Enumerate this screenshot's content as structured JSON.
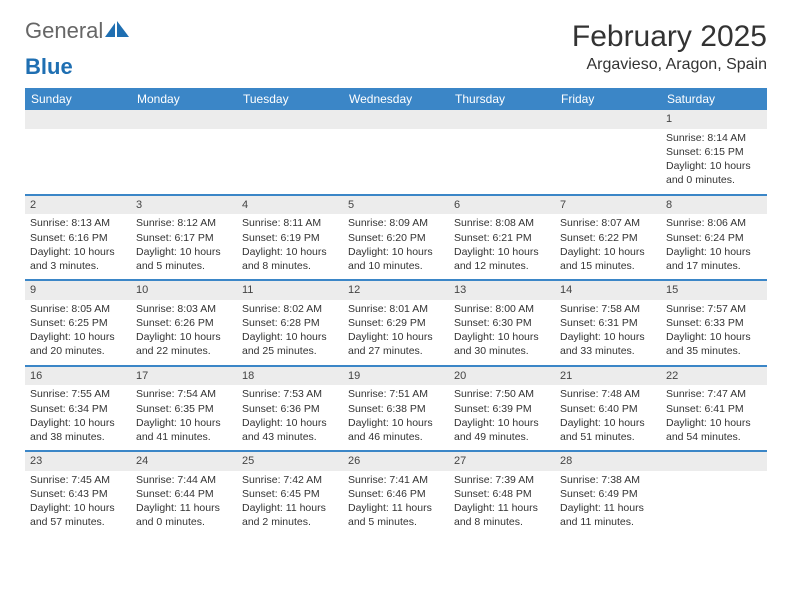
{
  "brand": {
    "part1": "General",
    "part2": "Blue"
  },
  "title": "February 2025",
  "location": "Argavieso, Aragon, Spain",
  "colors": {
    "header_bg": "#3b86c7",
    "header_text": "#ffffff",
    "rule": "#3b86c7",
    "daynum_bg": "#ececec",
    "body_text": "#333333"
  },
  "day_headers": [
    "Sunday",
    "Monday",
    "Tuesday",
    "Wednesday",
    "Thursday",
    "Friday",
    "Saturday"
  ],
  "weeks": [
    [
      null,
      null,
      null,
      null,
      null,
      null,
      {
        "n": "1",
        "sunrise": "Sunrise: 8:14 AM",
        "sunset": "Sunset: 6:15 PM",
        "daylight": "Daylight: 10 hours and 0 minutes."
      }
    ],
    [
      {
        "n": "2",
        "sunrise": "Sunrise: 8:13 AM",
        "sunset": "Sunset: 6:16 PM",
        "daylight": "Daylight: 10 hours and 3 minutes."
      },
      {
        "n": "3",
        "sunrise": "Sunrise: 8:12 AM",
        "sunset": "Sunset: 6:17 PM",
        "daylight": "Daylight: 10 hours and 5 minutes."
      },
      {
        "n": "4",
        "sunrise": "Sunrise: 8:11 AM",
        "sunset": "Sunset: 6:19 PM",
        "daylight": "Daylight: 10 hours and 8 minutes."
      },
      {
        "n": "5",
        "sunrise": "Sunrise: 8:09 AM",
        "sunset": "Sunset: 6:20 PM",
        "daylight": "Daylight: 10 hours and 10 minutes."
      },
      {
        "n": "6",
        "sunrise": "Sunrise: 8:08 AM",
        "sunset": "Sunset: 6:21 PM",
        "daylight": "Daylight: 10 hours and 12 minutes."
      },
      {
        "n": "7",
        "sunrise": "Sunrise: 8:07 AM",
        "sunset": "Sunset: 6:22 PM",
        "daylight": "Daylight: 10 hours and 15 minutes."
      },
      {
        "n": "8",
        "sunrise": "Sunrise: 8:06 AM",
        "sunset": "Sunset: 6:24 PM",
        "daylight": "Daylight: 10 hours and 17 minutes."
      }
    ],
    [
      {
        "n": "9",
        "sunrise": "Sunrise: 8:05 AM",
        "sunset": "Sunset: 6:25 PM",
        "daylight": "Daylight: 10 hours and 20 minutes."
      },
      {
        "n": "10",
        "sunrise": "Sunrise: 8:03 AM",
        "sunset": "Sunset: 6:26 PM",
        "daylight": "Daylight: 10 hours and 22 minutes."
      },
      {
        "n": "11",
        "sunrise": "Sunrise: 8:02 AM",
        "sunset": "Sunset: 6:28 PM",
        "daylight": "Daylight: 10 hours and 25 minutes."
      },
      {
        "n": "12",
        "sunrise": "Sunrise: 8:01 AM",
        "sunset": "Sunset: 6:29 PM",
        "daylight": "Daylight: 10 hours and 27 minutes."
      },
      {
        "n": "13",
        "sunrise": "Sunrise: 8:00 AM",
        "sunset": "Sunset: 6:30 PM",
        "daylight": "Daylight: 10 hours and 30 minutes."
      },
      {
        "n": "14",
        "sunrise": "Sunrise: 7:58 AM",
        "sunset": "Sunset: 6:31 PM",
        "daylight": "Daylight: 10 hours and 33 minutes."
      },
      {
        "n": "15",
        "sunrise": "Sunrise: 7:57 AM",
        "sunset": "Sunset: 6:33 PM",
        "daylight": "Daylight: 10 hours and 35 minutes."
      }
    ],
    [
      {
        "n": "16",
        "sunrise": "Sunrise: 7:55 AM",
        "sunset": "Sunset: 6:34 PM",
        "daylight": "Daylight: 10 hours and 38 minutes."
      },
      {
        "n": "17",
        "sunrise": "Sunrise: 7:54 AM",
        "sunset": "Sunset: 6:35 PM",
        "daylight": "Daylight: 10 hours and 41 minutes."
      },
      {
        "n": "18",
        "sunrise": "Sunrise: 7:53 AM",
        "sunset": "Sunset: 6:36 PM",
        "daylight": "Daylight: 10 hours and 43 minutes."
      },
      {
        "n": "19",
        "sunrise": "Sunrise: 7:51 AM",
        "sunset": "Sunset: 6:38 PM",
        "daylight": "Daylight: 10 hours and 46 minutes."
      },
      {
        "n": "20",
        "sunrise": "Sunrise: 7:50 AM",
        "sunset": "Sunset: 6:39 PM",
        "daylight": "Daylight: 10 hours and 49 minutes."
      },
      {
        "n": "21",
        "sunrise": "Sunrise: 7:48 AM",
        "sunset": "Sunset: 6:40 PM",
        "daylight": "Daylight: 10 hours and 51 minutes."
      },
      {
        "n": "22",
        "sunrise": "Sunrise: 7:47 AM",
        "sunset": "Sunset: 6:41 PM",
        "daylight": "Daylight: 10 hours and 54 minutes."
      }
    ],
    [
      {
        "n": "23",
        "sunrise": "Sunrise: 7:45 AM",
        "sunset": "Sunset: 6:43 PM",
        "daylight": "Daylight: 10 hours and 57 minutes."
      },
      {
        "n": "24",
        "sunrise": "Sunrise: 7:44 AM",
        "sunset": "Sunset: 6:44 PM",
        "daylight": "Daylight: 11 hours and 0 minutes."
      },
      {
        "n": "25",
        "sunrise": "Sunrise: 7:42 AM",
        "sunset": "Sunset: 6:45 PM",
        "daylight": "Daylight: 11 hours and 2 minutes."
      },
      {
        "n": "26",
        "sunrise": "Sunrise: 7:41 AM",
        "sunset": "Sunset: 6:46 PM",
        "daylight": "Daylight: 11 hours and 5 minutes."
      },
      {
        "n": "27",
        "sunrise": "Sunrise: 7:39 AM",
        "sunset": "Sunset: 6:48 PM",
        "daylight": "Daylight: 11 hours and 8 minutes."
      },
      {
        "n": "28",
        "sunrise": "Sunrise: 7:38 AM",
        "sunset": "Sunset: 6:49 PM",
        "daylight": "Daylight: 11 hours and 11 minutes."
      },
      null
    ]
  ]
}
